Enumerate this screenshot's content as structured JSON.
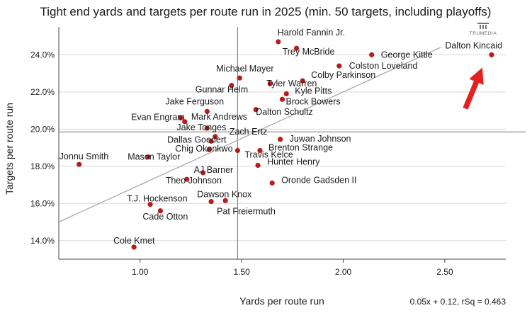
{
  "chart_data": {
    "type": "scatter",
    "title": "Tight end yards and targets per route run in 2025 (min. 50 targets, including playoffs)",
    "xlabel": "Yards per route run",
    "ylabel": "Targets per route run",
    "xlim": [
      0.6,
      2.8
    ],
    "ylim": [
      13.0,
      25.5
    ],
    "xticks": [
      1.0,
      1.5,
      2.0,
      2.5
    ],
    "xtick_labels": [
      "1.00",
      "1.50",
      "2.00",
      "2.50"
    ],
    "yticks": [
      14,
      16,
      18,
      20,
      22,
      24
    ],
    "ytick_labels": [
      "14.0%",
      "16.0%",
      "18.0%",
      "20.0%",
      "22.0%",
      "24.0%"
    ],
    "mean_x": 1.48,
    "mean_y": 19.85,
    "trendline": {
      "slope": 5.0,
      "intercept": 12.0,
      "x_range": [
        0.6,
        2.48
      ]
    },
    "formula_text": "0.05x + 0.12, rSq = 0.463",
    "brand": "TRUMEDIA",
    "highlight": "Dalton Kincaid",
    "marker_color": "#b81c1c",
    "arrow_color": "#e52020",
    "points": [
      {
        "name": "Harold Fannin Jr.",
        "x": 1.68,
        "y": 24.7
      },
      {
        "name": "Trey McBride",
        "x": 1.77,
        "y": 24.35
      },
      {
        "name": "George Kittle",
        "x": 2.14,
        "y": 24.0
      },
      {
        "name": "Dalton Kincaid",
        "x": 2.73,
        "y": 24.0
      },
      {
        "name": "Colston Loveland",
        "x": 1.98,
        "y": 23.4
      },
      {
        "name": "Michael Mayer",
        "x": 1.49,
        "y": 22.75
      },
      {
        "name": "Colby Parkinson",
        "x": 1.8,
        "y": 22.6
      },
      {
        "name": "Tyler Warren",
        "x": 1.64,
        "y": 22.45
      },
      {
        "name": "Gunnar Helm",
        "x": 1.45,
        "y": 22.35
      },
      {
        "name": "Kyle Pitts",
        "x": 1.72,
        "y": 21.9
      },
      {
        "name": "Brock Bowers",
        "x": 1.7,
        "y": 21.6
      },
      {
        "name": "Jake Ferguson",
        "x": 1.33,
        "y": 20.95
      },
      {
        "name": "Dalton Schultz",
        "x": 1.57,
        "y": 21.05
      },
      {
        "name": "Evan Engram",
        "x": 1.2,
        "y": 20.6
      },
      {
        "name": "Mark Andrews",
        "x": 1.22,
        "y": 20.4
      },
      {
        "name": "Jake Tonges",
        "x": 1.33,
        "y": 20.05
      },
      {
        "name": "Zach Ertz",
        "x": 1.37,
        "y": 19.6
      },
      {
        "name": "Dallas Goedert",
        "x": 1.35,
        "y": 19.35
      },
      {
        "name": "Juwan Johnson",
        "x": 1.69,
        "y": 19.45
      },
      {
        "name": "Chig Okonkwo",
        "x": 1.34,
        "y": 18.9
      },
      {
        "name": "Travis Kelce",
        "x": 1.48,
        "y": 18.85
      },
      {
        "name": "Brenton Strange",
        "x": 1.59,
        "y": 18.85
      },
      {
        "name": "Mason Taylor",
        "x": 1.04,
        "y": 18.5
      },
      {
        "name": "Jonnu Smith",
        "x": 0.7,
        "y": 18.1
      },
      {
        "name": "Hunter Henry",
        "x": 1.58,
        "y": 18.05
      },
      {
        "name": "AJ Barner",
        "x": 1.31,
        "y": 17.65
      },
      {
        "name": "Theo Johnson",
        "x": 1.23,
        "y": 17.3
      },
      {
        "name": "Oronde Gadsden II",
        "x": 1.65,
        "y": 17.1
      },
      {
        "name": "Dawson Knox",
        "x": 1.42,
        "y": 16.15
      },
      {
        "name": "Pat Freiermuth",
        "x": 1.35,
        "y": 16.1
      },
      {
        "name": "T.J. Hockenson",
        "x": 1.05,
        "y": 15.95
      },
      {
        "name": "Cade Otton",
        "x": 1.1,
        "y": 15.6
      },
      {
        "name": "Cole Kmet",
        "x": 0.97,
        "y": 13.65
      }
    ]
  }
}
